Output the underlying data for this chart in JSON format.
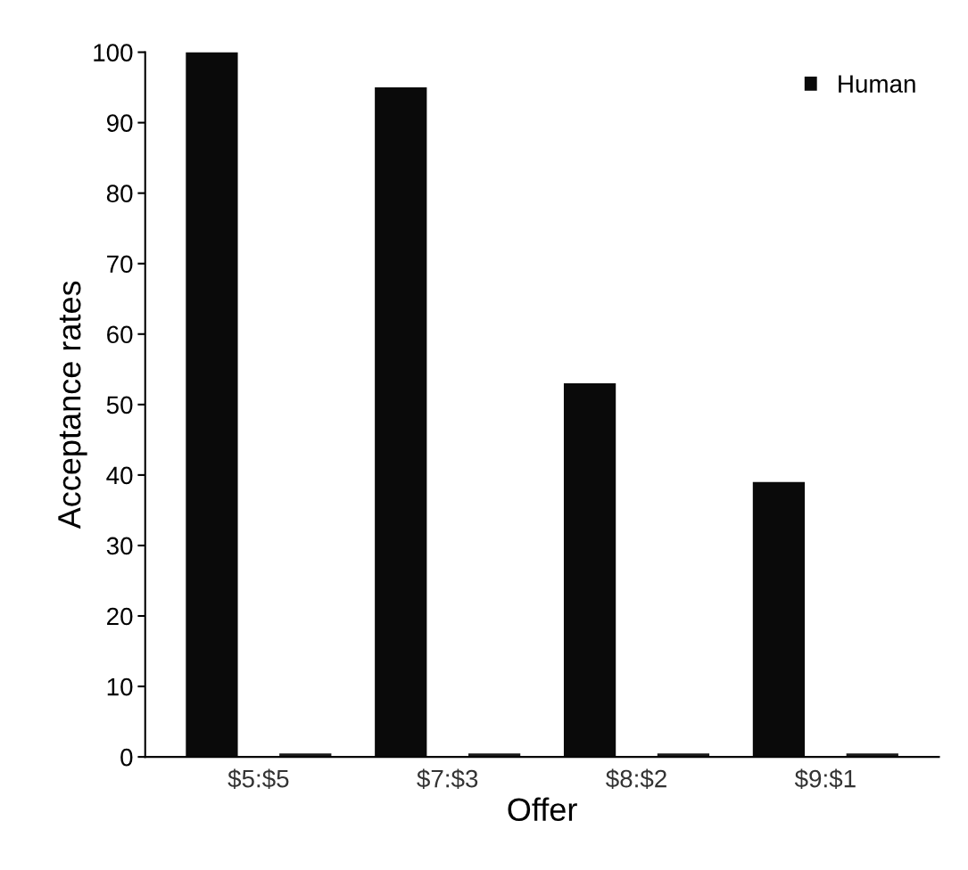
{
  "chart_data": {
    "type": "bar",
    "xlabel": "Offer",
    "ylabel": "Acceptance rates",
    "categories": [
      "$5:$5",
      "$7:$3",
      "$8:$2",
      "$9:$1"
    ],
    "series": [
      {
        "name": "Human",
        "color": "#0a0a0a",
        "values": [
          100,
          95,
          53,
          39
        ]
      },
      {
        "color": "#1a1a1a",
        "values": [
          0.5,
          0.5,
          0.5,
          0.5
        ]
      }
    ],
    "ylim": [
      0,
      100
    ],
    "yticks": [
      0,
      10,
      20,
      30,
      40,
      50,
      60,
      70,
      80,
      90,
      100
    ],
    "grid": false,
    "legend": "top right"
  }
}
